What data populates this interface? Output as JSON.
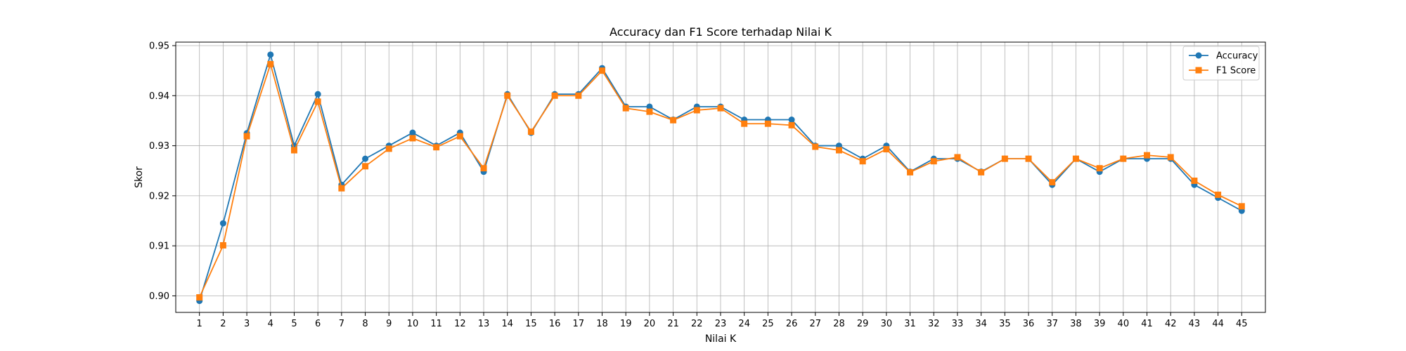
{
  "chart_data": {
    "type": "line",
    "title": "Accuracy dan F1 Score terhadap Nilai K",
    "xlabel": "Nilai K",
    "ylabel": "Skor",
    "x": [
      1,
      2,
      3,
      4,
      5,
      6,
      7,
      8,
      9,
      10,
      11,
      12,
      13,
      14,
      15,
      16,
      17,
      18,
      19,
      20,
      21,
      22,
      23,
      24,
      25,
      26,
      27,
      28,
      29,
      30,
      31,
      32,
      33,
      34,
      35,
      36,
      37,
      38,
      39,
      40,
      41,
      42,
      43,
      44,
      45
    ],
    "ylim": [
      0.8967,
      0.9507
    ],
    "yticks": [
      "0.90",
      "0.91",
      "0.92",
      "0.93",
      "0.94",
      "0.95"
    ],
    "grid": true,
    "legend_position": "top-right",
    "series": [
      {
        "name": "Accuracy",
        "color": "#1f77b4",
        "marker": "circle",
        "values": [
          0.899,
          0.9145,
          0.9325,
          0.9482,
          0.93,
          0.9403,
          0.9222,
          0.9274,
          0.93,
          0.9326,
          0.93,
          0.9326,
          0.9248,
          0.9403,
          0.9326,
          0.9403,
          0.9403,
          0.9455,
          0.9378,
          0.9378,
          0.9352,
          0.9378,
          0.9378,
          0.9352,
          0.9352,
          0.9352,
          0.93,
          0.93,
          0.9274,
          0.93,
          0.9248,
          0.9274,
          0.9274,
          0.9248,
          0.9274,
          0.9274,
          0.9222,
          0.9274,
          0.9248,
          0.9274,
          0.9274,
          0.9274,
          0.9222,
          0.9196,
          0.917
        ]
      },
      {
        "name": "F1 Score",
        "color": "#ff7f0e",
        "marker": "square",
        "values": [
          0.8997,
          0.9101,
          0.9319,
          0.9463,
          0.9291,
          0.9388,
          0.9215,
          0.9259,
          0.9294,
          0.9315,
          0.9297,
          0.9319,
          0.9255,
          0.94,
          0.9328,
          0.94,
          0.94,
          0.945,
          0.9375,
          0.9368,
          0.9351,
          0.9371,
          0.9375,
          0.9344,
          0.9344,
          0.9341,
          0.9298,
          0.9291,
          0.9269,
          0.9293,
          0.9247,
          0.9269,
          0.9277,
          0.9247,
          0.9274,
          0.9274,
          0.9227,
          0.9274,
          0.9255,
          0.9274,
          0.9281,
          0.9277,
          0.923,
          0.9202,
          0.9179
        ]
      }
    ]
  }
}
